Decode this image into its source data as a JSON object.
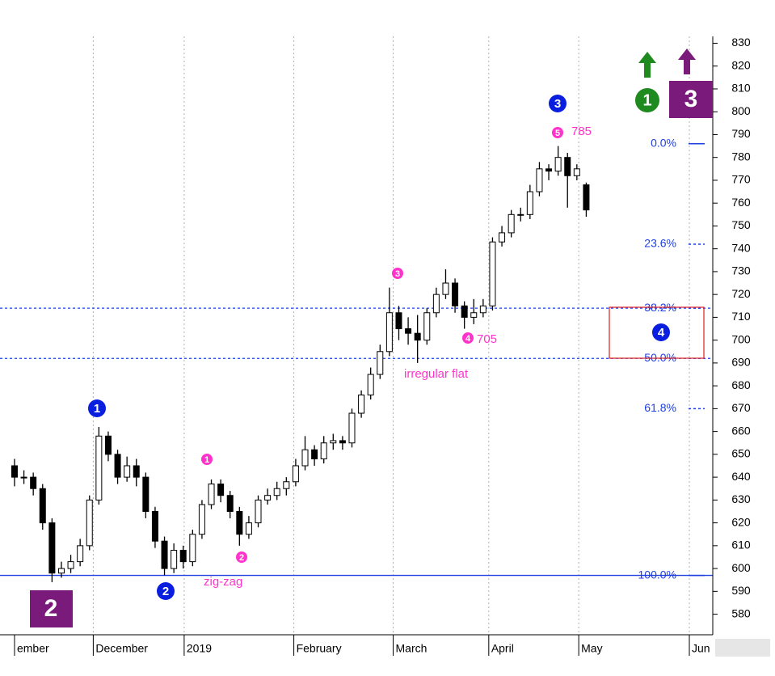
{
  "chart_data": {
    "type": "candlestick",
    "xlim": [
      -1.55,
      74.5
    ],
    "ylim": [
      571,
      833
    ],
    "yticks": [
      580,
      590,
      600,
      610,
      620,
      630,
      640,
      650,
      660,
      670,
      680,
      690,
      700,
      710,
      720,
      730,
      740,
      750,
      760,
      770,
      780,
      790,
      800,
      810,
      820,
      830
    ],
    "xticks": [
      {
        "value": 0,
        "label": "ember"
      },
      {
        "value": 8.4,
        "label": "December"
      },
      {
        "value": 18.1,
        "label": "2019"
      },
      {
        "value": 29.8,
        "label": "February"
      },
      {
        "value": 40.4,
        "label": "March"
      },
      {
        "value": 50.6,
        "label": "April"
      },
      {
        "value": 60.2,
        "label": "May"
      },
      {
        "value": 72.0,
        "label": "Jun"
      }
    ],
    "open": [
      645,
      640,
      640,
      635,
      620,
      598,
      600,
      603,
      610,
      630,
      658,
      650,
      640,
      645,
      640,
      625,
      612,
      600,
      608,
      603,
      615,
      628,
      637,
      632,
      625,
      615,
      620,
      630,
      632,
      635,
      638,
      645,
      652,
      648,
      655,
      656,
      655,
      668,
      676,
      685,
      695,
      712,
      705,
      703,
      700,
      712,
      720,
      725,
      715,
      710,
      712,
      715,
      743,
      747,
      755,
      755,
      765,
      775,
      774,
      780,
      772,
      768
    ],
    "high": [
      648,
      643,
      642,
      637,
      622,
      603,
      606,
      613,
      632,
      662,
      660,
      652,
      649,
      648,
      642,
      627,
      614,
      611,
      610,
      617,
      630,
      639,
      639,
      634,
      627,
      623,
      632,
      635,
      638,
      640,
      648,
      658,
      654,
      658,
      659,
      658,
      670,
      678,
      688,
      698,
      723,
      715,
      710,
      711,
      714,
      723,
      731,
      727,
      717,
      718,
      718,
      745,
      750,
      757,
      758,
      768,
      778,
      777,
      785,
      782,
      777,
      769
    ],
    "low": [
      636,
      637,
      632,
      617,
      594,
      596,
      598,
      601,
      608,
      628,
      647,
      637,
      638,
      636,
      622,
      609,
      597,
      598,
      600,
      601,
      613,
      626,
      629,
      622,
      610,
      613,
      618,
      628,
      630,
      632,
      636,
      643,
      645,
      646,
      652,
      652,
      653,
      666,
      674,
      683,
      693,
      700,
      698,
      690,
      698,
      710,
      718,
      712,
      705,
      707,
      710,
      713,
      741,
      745,
      752,
      753,
      763,
      770,
      772,
      758,
      770,
      754
    ],
    "close": [
      640,
      640,
      635,
      620,
      598,
      600,
      603,
      610,
      630,
      658,
      650,
      640,
      645,
      640,
      625,
      612,
      600,
      608,
      603,
      615,
      628,
      637,
      632,
      625,
      615,
      620,
      630,
      632,
      635,
      638,
      645,
      652,
      648,
      655,
      656,
      655,
      668,
      676,
      685,
      695,
      712,
      705,
      703,
      700,
      712,
      720,
      725,
      715,
      710,
      712,
      715,
      743,
      747,
      755,
      755,
      765,
      775,
      774,
      780,
      772,
      775,
      757
    ],
    "up_color": "#ffffff",
    "down_color": "#000000",
    "fib_levels": [
      {
        "label": "0.0%",
        "value": 786,
        "extend": false,
        "dash": false
      },
      {
        "label": "23.6%",
        "value": 742,
        "extend": false,
        "dash": true
      },
      {
        "label": "38.2%",
        "value": 714,
        "extend": true,
        "dash": true
      },
      {
        "label": "50.0%",
        "value": 692,
        "extend": true,
        "dash": true
      },
      {
        "label": "61.8%",
        "value": 670,
        "extend": false,
        "dash": true
      },
      {
        "label": "100.0%",
        "value": 597,
        "extend": true,
        "dash": false
      }
    ],
    "fib_color": "#1f3fe0",
    "annotations": [
      "1",
      "2",
      "3",
      "4",
      "1",
      "2",
      "3",
      "4",
      "5",
      "785",
      "705",
      "zig-zag",
      "irregular flat",
      "2",
      "3",
      "1"
    ]
  }
}
